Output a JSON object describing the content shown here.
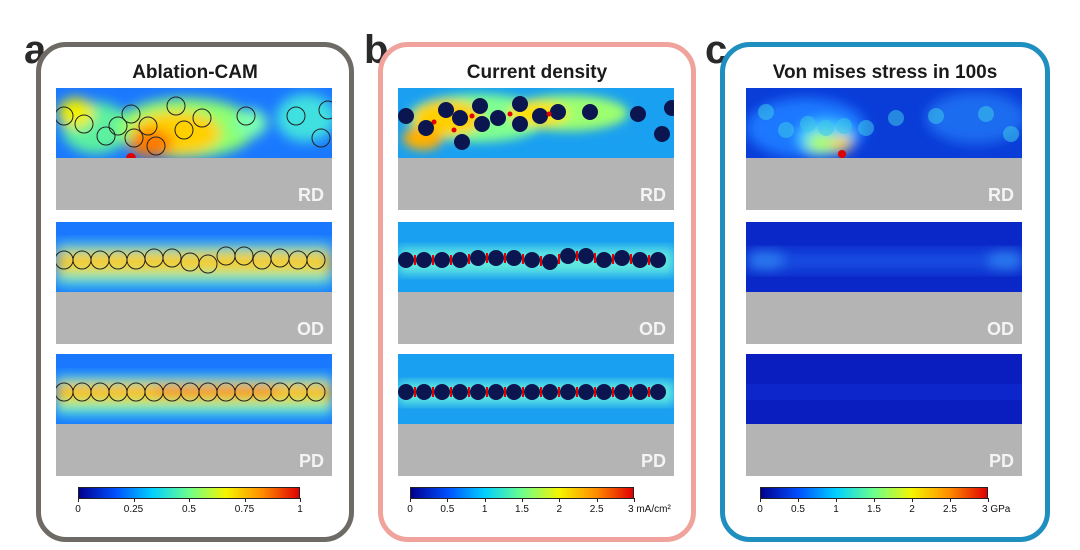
{
  "panels": [
    {
      "letter": "a",
      "title": "Ablation-CAM",
      "border_color": "#6e6a66",
      "colorbar": {
        "stops": [
          "#00008f",
          "#0050ff",
          "#00d0ff",
          "#6cff8c",
          "#f5f500",
          "#ff8c00",
          "#e00000"
        ],
        "ticks": [
          "0",
          "0.25",
          "0.5",
          "0.75",
          "1"
        ],
        "unit": ""
      },
      "samples": [
        {
          "label": "RD"
        },
        {
          "label": "OD"
        },
        {
          "label": "PD"
        }
      ]
    },
    {
      "letter": "b",
      "title": "Current density",
      "border_color": "#f0a39c",
      "colorbar": {
        "stops": [
          "#00008f",
          "#0050ff",
          "#00d0ff",
          "#6cff8c",
          "#f5f500",
          "#ff8c00",
          "#e00000"
        ],
        "ticks": [
          "0",
          "0.5",
          "1",
          "1.5",
          "2",
          "2.5",
          "3"
        ],
        "unit": "mA/cm²"
      },
      "samples": [
        {
          "label": "RD"
        },
        {
          "label": "OD"
        },
        {
          "label": "PD"
        }
      ]
    },
    {
      "letter": "c",
      "title": "Von mises stress in 100s",
      "border_color": "#1f8fc0",
      "colorbar": {
        "stops": [
          "#00008f",
          "#0050ff",
          "#00d0ff",
          "#6cff8c",
          "#f5f500",
          "#ff8c00",
          "#e00000"
        ],
        "ticks": [
          "0",
          "0.5",
          "1",
          "1.5",
          "2",
          "2.5",
          "3"
        ],
        "unit": "GPa"
      },
      "samples": [
        {
          "label": "RD"
        },
        {
          "label": "OD"
        },
        {
          "label": "PD"
        }
      ]
    }
  ]
}
